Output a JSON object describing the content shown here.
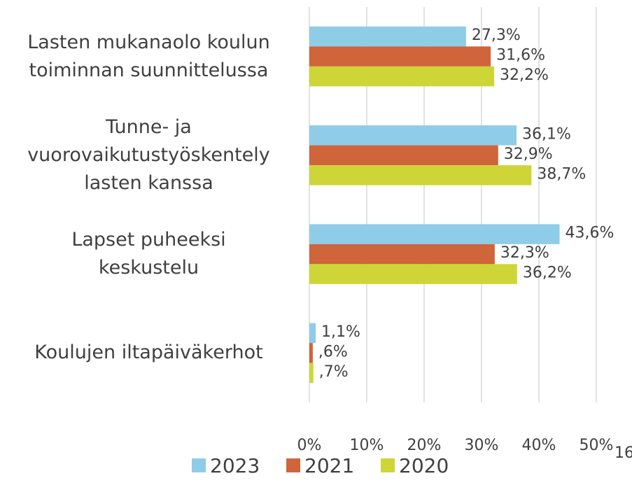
{
  "chart_data": {
    "type": "hbar",
    "categories": [
      "Lasten mukanaolo koulun\ntoiminnan suunnittelussa",
      "Tunne- ja\nvuorovaikutustyöskentely\nlasten kanssa",
      "Lapset puheeksi\nkeskustelu",
      "Koulujen iltapäiväkerhot"
    ],
    "series": [
      {
        "name": "2023",
        "color": "#8fcce8",
        "values": [
          27.3,
          36.1,
          43.6,
          1.1
        ],
        "value_labels": [
          "27,3%",
          "36,1%",
          "43,6%",
          "1,1%"
        ]
      },
      {
        "name": "2021",
        "color": "#d0643a",
        "values": [
          31.6,
          32.9,
          32.3,
          0.6
        ],
        "value_labels": [
          "31,6%",
          "32,9%",
          "32,3%",
          ",6%"
        ]
      },
      {
        "name": "2020",
        "color": "#cdd636",
        "values": [
          32.2,
          38.7,
          36.2,
          0.7
        ],
        "value_labels": [
          "32,2%",
          "38,7%",
          "36,2%",
          ",7%"
        ]
      }
    ],
    "xlim": [
      0,
      50
    ],
    "xticks": [
      {
        "value": 0,
        "label": "0%"
      },
      {
        "value": 10,
        "label": "10%"
      },
      {
        "value": 20,
        "label": "20%"
      },
      {
        "value": 30,
        "label": "30%"
      },
      {
        "value": 40,
        "label": "40%"
      },
      {
        "value": 50,
        "label": "50%"
      }
    ],
    "grid": true,
    "legend": "bottom"
  },
  "page_number": "16"
}
